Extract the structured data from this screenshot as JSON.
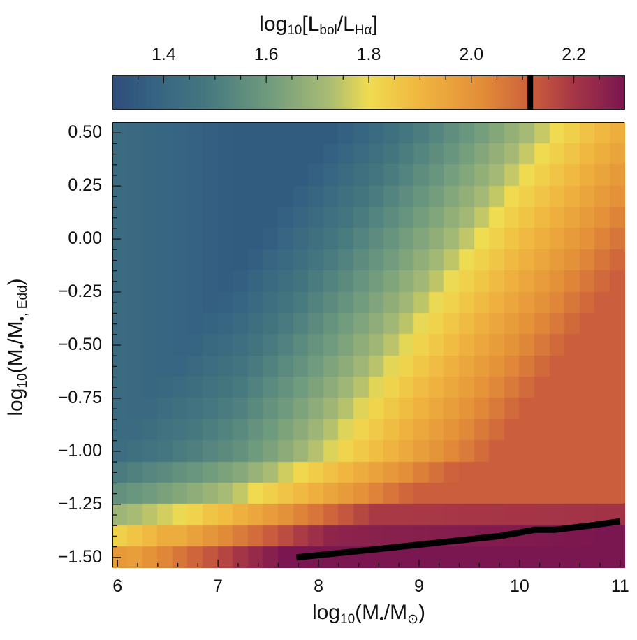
{
  "chart_data": {
    "type": "heatmap",
    "title": "",
    "colorbar": {
      "label": "log10[Lbol/LHα]",
      "label_parts": {
        "pre": "log",
        "sub1": "10",
        "mid": "[L",
        "sub2": "bol",
        "mid2": "/L",
        "sub3": "Hα",
        "post": "]"
      },
      "range": [
        1.3,
        2.3
      ],
      "ticks": [
        1.4,
        1.6,
        1.8,
        2.0,
        2.2
      ],
      "tick_labels": [
        "1.4",
        "1.6",
        "1.8",
        "2.0",
        "2.2"
      ],
      "minor_tick_step": 0.05,
      "marker_line_value": 2.115,
      "position": "top",
      "colormap_stops": [
        [
          0.0,
          "#2e4e7c"
        ],
        [
          0.08,
          "#356382"
        ],
        [
          0.18,
          "#44777f"
        ],
        [
          0.3,
          "#6e9a7e"
        ],
        [
          0.42,
          "#a8bb74"
        ],
        [
          0.5,
          "#f0dc50"
        ],
        [
          0.6,
          "#f0b640"
        ],
        [
          0.72,
          "#e38e38"
        ],
        [
          0.82,
          "#cb5e3c"
        ],
        [
          0.9,
          "#a63646"
        ],
        [
          1.0,
          "#7a1650"
        ]
      ]
    },
    "xlabel": "log10(M•/M⊙)",
    "xlabel_parts": {
      "pre": "log",
      "sub": "10",
      "body": "(M",
      "bullet": "•",
      "mid": "/M",
      "sun": "⊙",
      "post": ")"
    },
    "ylabel": "log10(Ṁ•/Ṁ•,Edd)",
    "ylabel_parts": {
      "pre": "log",
      "sub": "10",
      "open": "(",
      "m1": "M",
      "sub1": "•",
      "slash": "/",
      "m2": "M",
      "sub2": "•, Edd",
      "close": ")"
    },
    "xlim": [
      5.95,
      11.05
    ],
    "ylim": [
      -1.55,
      0.55
    ],
    "xticks": [
      6,
      7,
      8,
      9,
      10,
      11
    ],
    "xtick_labels": [
      "6",
      "7",
      "8",
      "9",
      "10",
      "11"
    ],
    "yticks": [
      0.5,
      0.25,
      0.0,
      -0.25,
      -0.5,
      -0.75,
      -1.0,
      -1.25,
      -1.5
    ],
    "ytick_labels": [
      "0.50",
      "0.25",
      "0.00",
      "−0.25",
      "−0.50",
      "−0.75",
      "−1.00",
      "−1.25",
      "−1.50"
    ],
    "grid": {
      "nx": 34,
      "ny": 21,
      "x_range": [
        5.95,
        11.05
      ],
      "y_range": [
        -1.55,
        0.55
      ]
    },
    "description": "Value is lowest (~1.35-1.4, blue/teal) at log M ~7.5-9, log Mdot ~0 to 0.5; rises to yellow (~1.8) along a diagonal ridge from (7.5,-1.35) to (10.3,0.5); orange (~2.0-2.1) beyond; highest (~2.3, purple) at high mass, lowest accretion rate (bottom-right).",
    "contour_line": {
      "label": "Lbol/LHα = 2.115 contour",
      "value": 2.115,
      "points": [
        [
          7.78,
          -1.5
        ],
        [
          8.2,
          -1.48
        ],
        [
          8.6,
          -1.46
        ],
        [
          9.0,
          -1.44
        ],
        [
          9.4,
          -1.42
        ],
        [
          9.8,
          -1.4
        ],
        [
          10.15,
          -1.37
        ],
        [
          10.35,
          -1.37
        ],
        [
          10.7,
          -1.35
        ],
        [
          11.0,
          -1.33
        ]
      ],
      "color": "#000000"
    }
  }
}
